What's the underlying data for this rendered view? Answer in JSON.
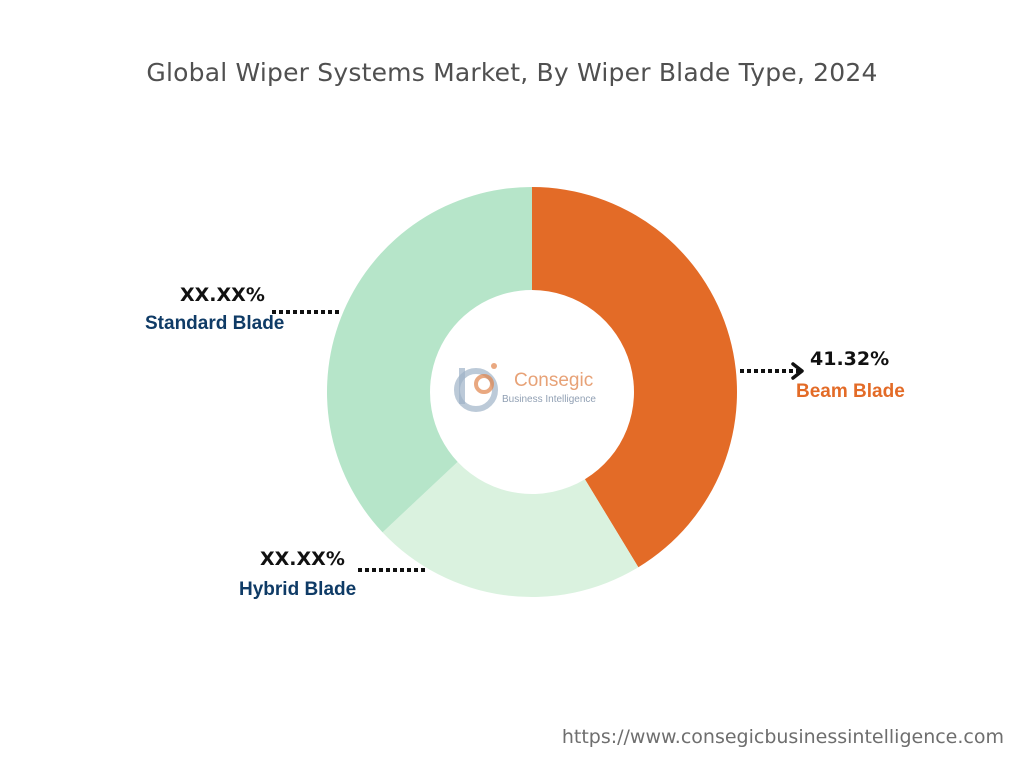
{
  "title": "Global Wiper Systems Market, By Wiper Blade Type, 2024",
  "chart_data": {
    "type": "pie",
    "variant": "donut",
    "categories": [
      "Beam Blade",
      "Hybrid Blade",
      "Standard Blade"
    ],
    "values": [
      41.32,
      21.68,
      37.0
    ],
    "labels": [
      "41.32%",
      "XX.XX%",
      "XX.XX%"
    ],
    "colors": [
      "#e36b27",
      "#daf2df",
      "#b6e5c9"
    ],
    "label_colors": [
      "#e36b27",
      "#0f3b66",
      "#0f3b66"
    ],
    "legend": "none"
  },
  "logo": {
    "name": "Consegic",
    "tagline": "Business Intelligence"
  },
  "source": "https://www.consegicbusinessintelligence.com"
}
